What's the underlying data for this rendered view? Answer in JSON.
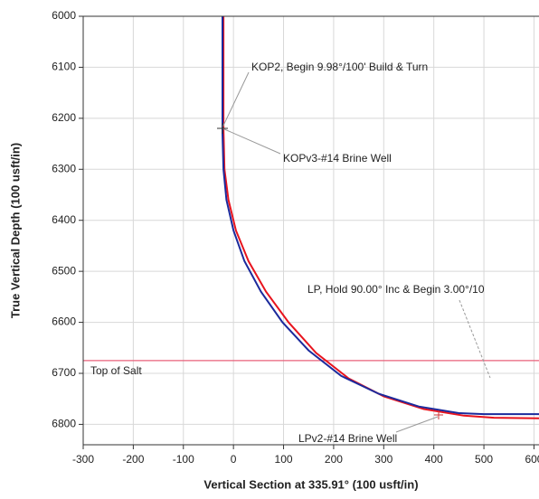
{
  "chart_data": {
    "type": "line",
    "x_label": "Vertical Section at 335.91° (100 usft/in)",
    "y_label": "True Vertical Depth (100 usft/in)",
    "xlim": [
      -300,
      610
    ],
    "ylim": [
      6000,
      6840
    ],
    "y_inverted": true,
    "xticks": [
      -300,
      -200,
      -100,
      0,
      100,
      200,
      300,
      400,
      500,
      600
    ],
    "yticks": [
      6000,
      6100,
      6200,
      6300,
      6400,
      6500,
      6600,
      6700,
      6800
    ],
    "grid": true,
    "series": [
      {
        "color": "#e8141e",
        "x": [
          -20,
          -20,
          -18,
          -10,
          5,
          30,
          65,
          110,
          165,
          230,
          300,
          380,
          460,
          520,
          610
        ],
        "values": [
          6000,
          6220,
          6300,
          6360,
          6420,
          6480,
          6540,
          6600,
          6660,
          6710,
          6745,
          6770,
          6783,
          6787,
          6788
        ]
      },
      {
        "color": "#1c2a9c",
        "x": [
          -22,
          -22,
          -20,
          -14,
          0,
          22,
          55,
          98,
          150,
          215,
          290,
          370,
          450,
          500,
          610
        ],
        "values": [
          6000,
          6230,
          6300,
          6360,
          6420,
          6480,
          6540,
          6600,
          6655,
          6705,
          6740,
          6765,
          6778,
          6780,
          6780
        ]
      }
    ],
    "reference_lines": [
      {
        "label": "Top of Salt",
        "value": 6675,
        "color": "#e8607a"
      }
    ],
    "annotations": [
      "KOP2, Begin 9.98°/100' Build & Turn",
      "KOPv3-#14 Brine Well",
      "LP, Hold 90.00° Inc & Begin 3.00°/10",
      "LPv2-#14 Brine Well"
    ]
  }
}
